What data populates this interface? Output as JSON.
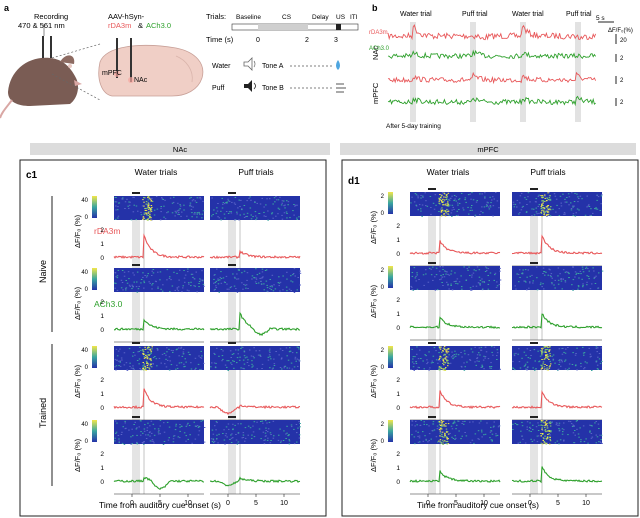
{
  "panel_a": {
    "letter": "a",
    "recording_label": "Recording",
    "wavelengths": "470 & 561 nm",
    "virus_label": "AAV-hSyn-",
    "rda3m": "rDA3m",
    "amp": "&",
    "ach": "ACh3.0",
    "mpfc": "mPFC",
    "nac": "NAc",
    "trials_label": "Trials:",
    "phase_baseline": "Baseline",
    "phase_cs": "CS",
    "phase_delay": "Delay",
    "phase_us": "US",
    "phase_iti": "ITI",
    "time_label": "Time (s)",
    "t0": "0",
    "t2": "2",
    "t3": "3",
    "water_label": "Water",
    "puff_label": "Puff",
    "tone_a": "Tone A",
    "tone_b": "Tone B"
  },
  "panel_b": {
    "letter": "b",
    "trial_titles": [
      "Water trial",
      "Puff trial",
      "Water trial",
      "Puff trial"
    ],
    "nac": "NAc",
    "mpfc": "mPFC",
    "rda3m": "rDA3m",
    "ach": "ACh3.0",
    "scale_time": "5 s",
    "scale_y": "ΔF/F₀(%)",
    "scale_20": "20",
    "scale_2": "2",
    "footnote": "After 5-day training"
  },
  "section_bars": {
    "left": "NAc",
    "right": "mPFC"
  },
  "panel_c1": {
    "letter": "c1",
    "water": "Water trials",
    "puff": "Puff trials",
    "naive": "Naive",
    "trained": "Trained",
    "rda3m": "rDA3m",
    "ach": "ACh3.0",
    "ylabel": "ΔF/F₀ (%)",
    "cb_top": "40",
    "cb_mid": "20",
    "cb_low": "0",
    "ticks_y_rda": [
      "4",
      "2",
      "0"
    ],
    "ticks_y_ach": [
      "2",
      "1",
      "0"
    ],
    "ticks_x": [
      "0",
      "5",
      "10"
    ],
    "xlabel": "Time from auditory cue onset (s)"
  },
  "panel_d1": {
    "letter": "d1",
    "water": "Water trials",
    "puff": "Puff trials",
    "ylabel": "ΔF/F₀ (%)",
    "cb_top": "2",
    "cb_mid": "1",
    "cb_low": "0",
    "ticks_y": [
      "2",
      "1",
      "0"
    ],
    "ticks_x": [
      "0",
      "5",
      "10"
    ],
    "xlabel": "Time from auditory cue onset (s)"
  },
  "colors": {
    "rda3m": "#e8585a",
    "ach": "#2ea02c",
    "heat_low": "#2432a8",
    "heat_high": "#f2e64a",
    "cue_shade": "#d8d8d8"
  }
}
